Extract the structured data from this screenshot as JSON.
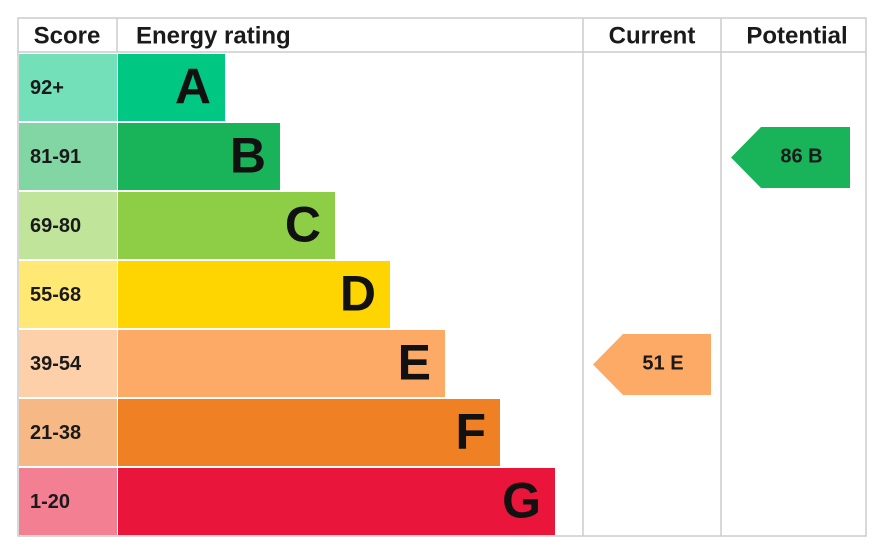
{
  "header": [
    "Score",
    "Energy rating",
    "Current",
    "Potential"
  ],
  "bands": [
    {
      "score": "92+",
      "letter": "A",
      "color": "#00c781"
    },
    {
      "score": "81-91",
      "letter": "B",
      "color": "#19b459"
    },
    {
      "score": "69-80",
      "letter": "C",
      "color": "#8dce46"
    },
    {
      "score": "55-68",
      "letter": "D",
      "color": "#ffd500"
    },
    {
      "score": "39-54",
      "letter": "E",
      "color": "#fcaa65"
    },
    {
      "score": "21-38",
      "letter": "F",
      "color": "#ef8023"
    },
    {
      "score": "1-20",
      "letter": "G",
      "color": "#e9153b"
    }
  ],
  "current": {
    "score": 51,
    "rating": "E"
  },
  "potential": {
    "score": 86,
    "rating": "B"
  }
}
